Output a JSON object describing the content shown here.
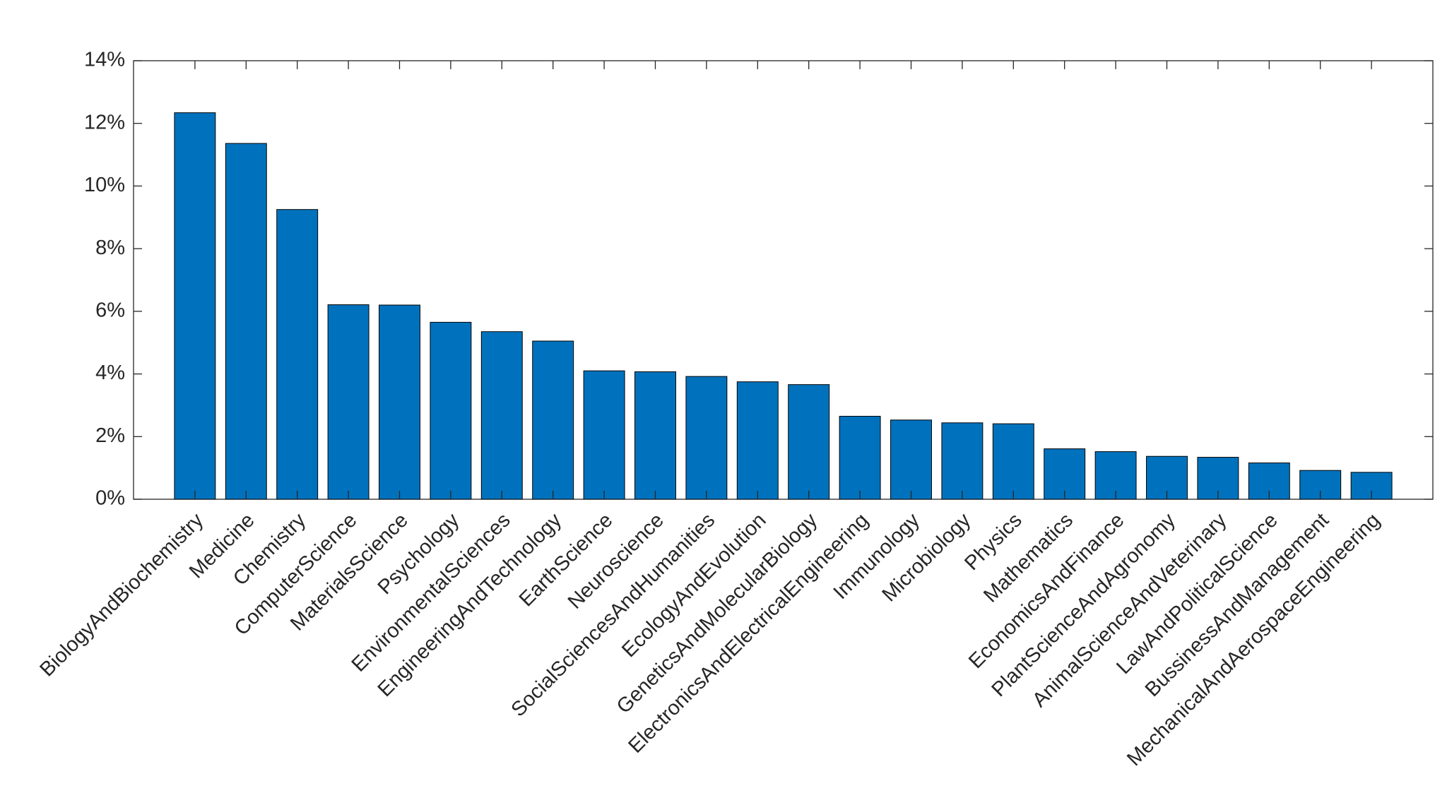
{
  "chart_data": {
    "type": "bar",
    "categories": [
      "BiologyAndBiochemistry",
      "Medicine",
      "Chemistry",
      "ComputerScience",
      "MaterialsScience",
      "Psychology",
      "EnvironmentalSciences",
      "EngineeringAndTechnology",
      "EarthScience",
      "Neuroscience",
      "SocialSciencesAndHumanities",
      "EcologyAndEvolution",
      "GeneticsAndMolecularBiology",
      "ElectronicsAndElectricalEngineering",
      "Immunology",
      "Microbiology",
      "Physics",
      "Mathematics",
      "EconomicsAndFinance",
      "PlantScienceAndAgronomy",
      "AnimalScienceAndVeterinary",
      "LawAndPoliticalScience",
      "BussinessAndManagement",
      "MechanicalAndAerospaceEngineering"
    ],
    "values": [
      12.34,
      11.36,
      9.25,
      6.21,
      6.2,
      5.65,
      5.35,
      5.05,
      4.1,
      4.07,
      3.92,
      3.75,
      3.66,
      2.65,
      2.53,
      2.44,
      2.41,
      1.61,
      1.52,
      1.37,
      1.34,
      1.16,
      0.92,
      0.86
    ],
    "color": "#0072bd",
    "ylim": [
      0,
      14
    ],
    "yticks": [
      {
        "value": 0,
        "label": "0%"
      },
      {
        "value": 2,
        "label": "2%"
      },
      {
        "value": 4,
        "label": "4%"
      },
      {
        "value": 6,
        "label": "6%"
      },
      {
        "value": 8,
        "label": "8%"
      },
      {
        "value": 10,
        "label": "10%"
      },
      {
        "value": 12,
        "label": "12%"
      },
      {
        "value": 14,
        "label": "14%"
      }
    ],
    "grid": false
  }
}
